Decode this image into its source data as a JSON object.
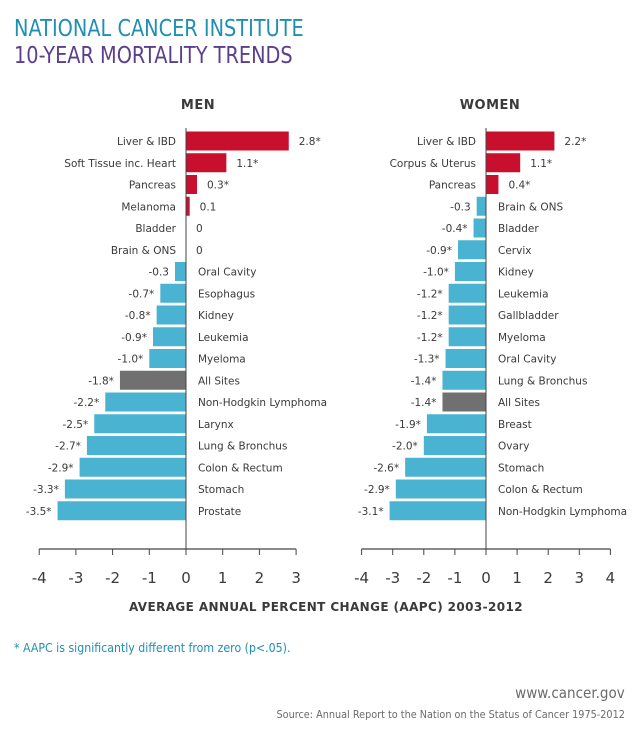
{
  "header": {
    "line1": "NATIONAL CANCER INSTITUTE",
    "line2": "10-YEAR MORTALITY TRENDS"
  },
  "footnote": "* AAPC is significantly different from zero (p<.05).",
  "website": "www.cancer.gov",
  "source": "Source: Annual Report to the Nation on the Status of Cancer 1975-2012",
  "colors": {
    "increase": "#c8102e",
    "decrease": "#4ab3d1",
    "all_sites": "#707070",
    "axis": "#444444"
  },
  "chart_data": [
    {
      "type": "bar",
      "orientation": "horizontal",
      "title": "MEN",
      "xlabel": "AVERAGE ANNUAL PERCENT CHANGE (AAPC) 2003-2012",
      "xlim": [
        -4,
        3
      ],
      "xticks": [
        "-4",
        "-3",
        "-2",
        "-1",
        "0",
        "1",
        "2",
        "3"
      ],
      "categories": [
        "Liver & IBD",
        "Soft Tissue inc. Heart",
        "Pancreas",
        "Melanoma",
        "Bladder",
        "Brain & ONS",
        "Oral Cavity",
        "Esophagus",
        "Kidney",
        "Leukemia",
        "Myeloma",
        "All Sites",
        "Non-Hodgkin Lymphoma",
        "Larynx",
        "Lung & Bronchus",
        "Colon & Rectum",
        "Stomach",
        "Prostate"
      ],
      "values": [
        2.8,
        1.1,
        0.3,
        0.1,
        0,
        0,
        -0.3,
        -0.7,
        -0.8,
        -0.9,
        -1.0,
        -1.8,
        -2.2,
        -2.5,
        -2.7,
        -2.9,
        -3.3,
        -3.5
      ],
      "value_labels": [
        "2.8*",
        "1.1*",
        "0.3*",
        "0.1",
        "0",
        "0",
        "-0.3",
        "-0.7*",
        "-0.8*",
        "-0.9*",
        "-1.0*",
        "-1.8*",
        "-2.2*",
        "-2.5*",
        "-2.7*",
        "-2.9*",
        "-3.3*",
        "-3.5*"
      ]
    },
    {
      "type": "bar",
      "orientation": "horizontal",
      "title": "WOMEN",
      "xlabel": "AVERAGE ANNUAL PERCENT CHANGE (AAPC) 2003-2012",
      "xlim": [
        -4,
        4
      ],
      "xticks": [
        "-4",
        "-3",
        "-2",
        "-1",
        "0",
        "1",
        "2",
        "3",
        "4"
      ],
      "categories": [
        "Liver & IBD",
        "Corpus & Uterus",
        "Pancreas",
        "Brain & ONS",
        "Bladder",
        "Cervix",
        "Kidney",
        "Leukemia",
        "Gallbladder",
        "Myeloma",
        "Oral Cavity",
        "Lung & Bronchus",
        "All Sites",
        "Breast",
        "Ovary",
        "Stomach",
        "Colon & Rectum",
        "Non-Hodgkin Lymphoma"
      ],
      "values": [
        2.2,
        1.1,
        0.4,
        -0.3,
        -0.4,
        -0.9,
        -1.0,
        -1.2,
        -1.2,
        -1.2,
        -1.3,
        -1.4,
        -1.4,
        -1.9,
        -2.0,
        -2.6,
        -2.9,
        -3.1
      ],
      "value_labels": [
        "2.2*",
        "1.1*",
        "0.4*",
        "-0.3",
        "-0.4*",
        "-0.9*",
        "-1.0*",
        "-1.2*",
        "-1.2*",
        "-1.2*",
        "-1.3*",
        "-1.4*",
        "-1.4*",
        "-1.9*",
        "-2.0*",
        "-2.6*",
        "-2.9*",
        "-3.1*"
      ]
    }
  ]
}
